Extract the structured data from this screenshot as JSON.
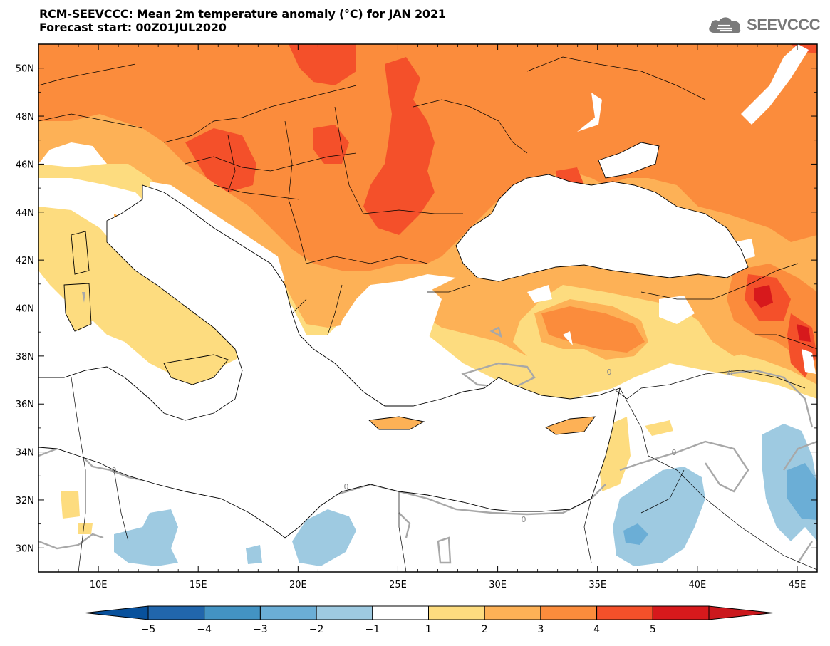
{
  "title": {
    "line1": "RCM-SEEVCCC: Mean 2m temperature anomaly (°C) for JAN 2021",
    "line2": "Forecast start: 00Z01JUL2020"
  },
  "logo": {
    "text": "SEEVCCC",
    "icon": "cloud-icon"
  },
  "map": {
    "lon_range": [
      7,
      46
    ],
    "lat_range": [
      29,
      51
    ],
    "lon_ticks": [
      "10E",
      "15E",
      "20E",
      "25E",
      "30E",
      "35E",
      "40E",
      "45E"
    ],
    "lat_ticks": [
      "50N",
      "48N",
      "46N",
      "44N",
      "42N",
      "40N",
      "38N",
      "36N",
      "34N",
      "32N",
      "30N"
    ],
    "contour_label": "0"
  },
  "colorbar": {
    "labels": [
      "−5",
      "−4",
      "−3",
      "−2",
      "−1",
      "1",
      "2",
      "3",
      "4",
      "5"
    ],
    "colors": [
      "#2166ac",
      "#4393c3",
      "#6baed6",
      "#9ecae1",
      "#ffffff",
      "#fddc7f",
      "#fdb156",
      "#fb8c3c",
      "#f4502a",
      "#d7191c"
    ],
    "under_color": "#08519c",
    "over_color": "#cb181d"
  }
}
